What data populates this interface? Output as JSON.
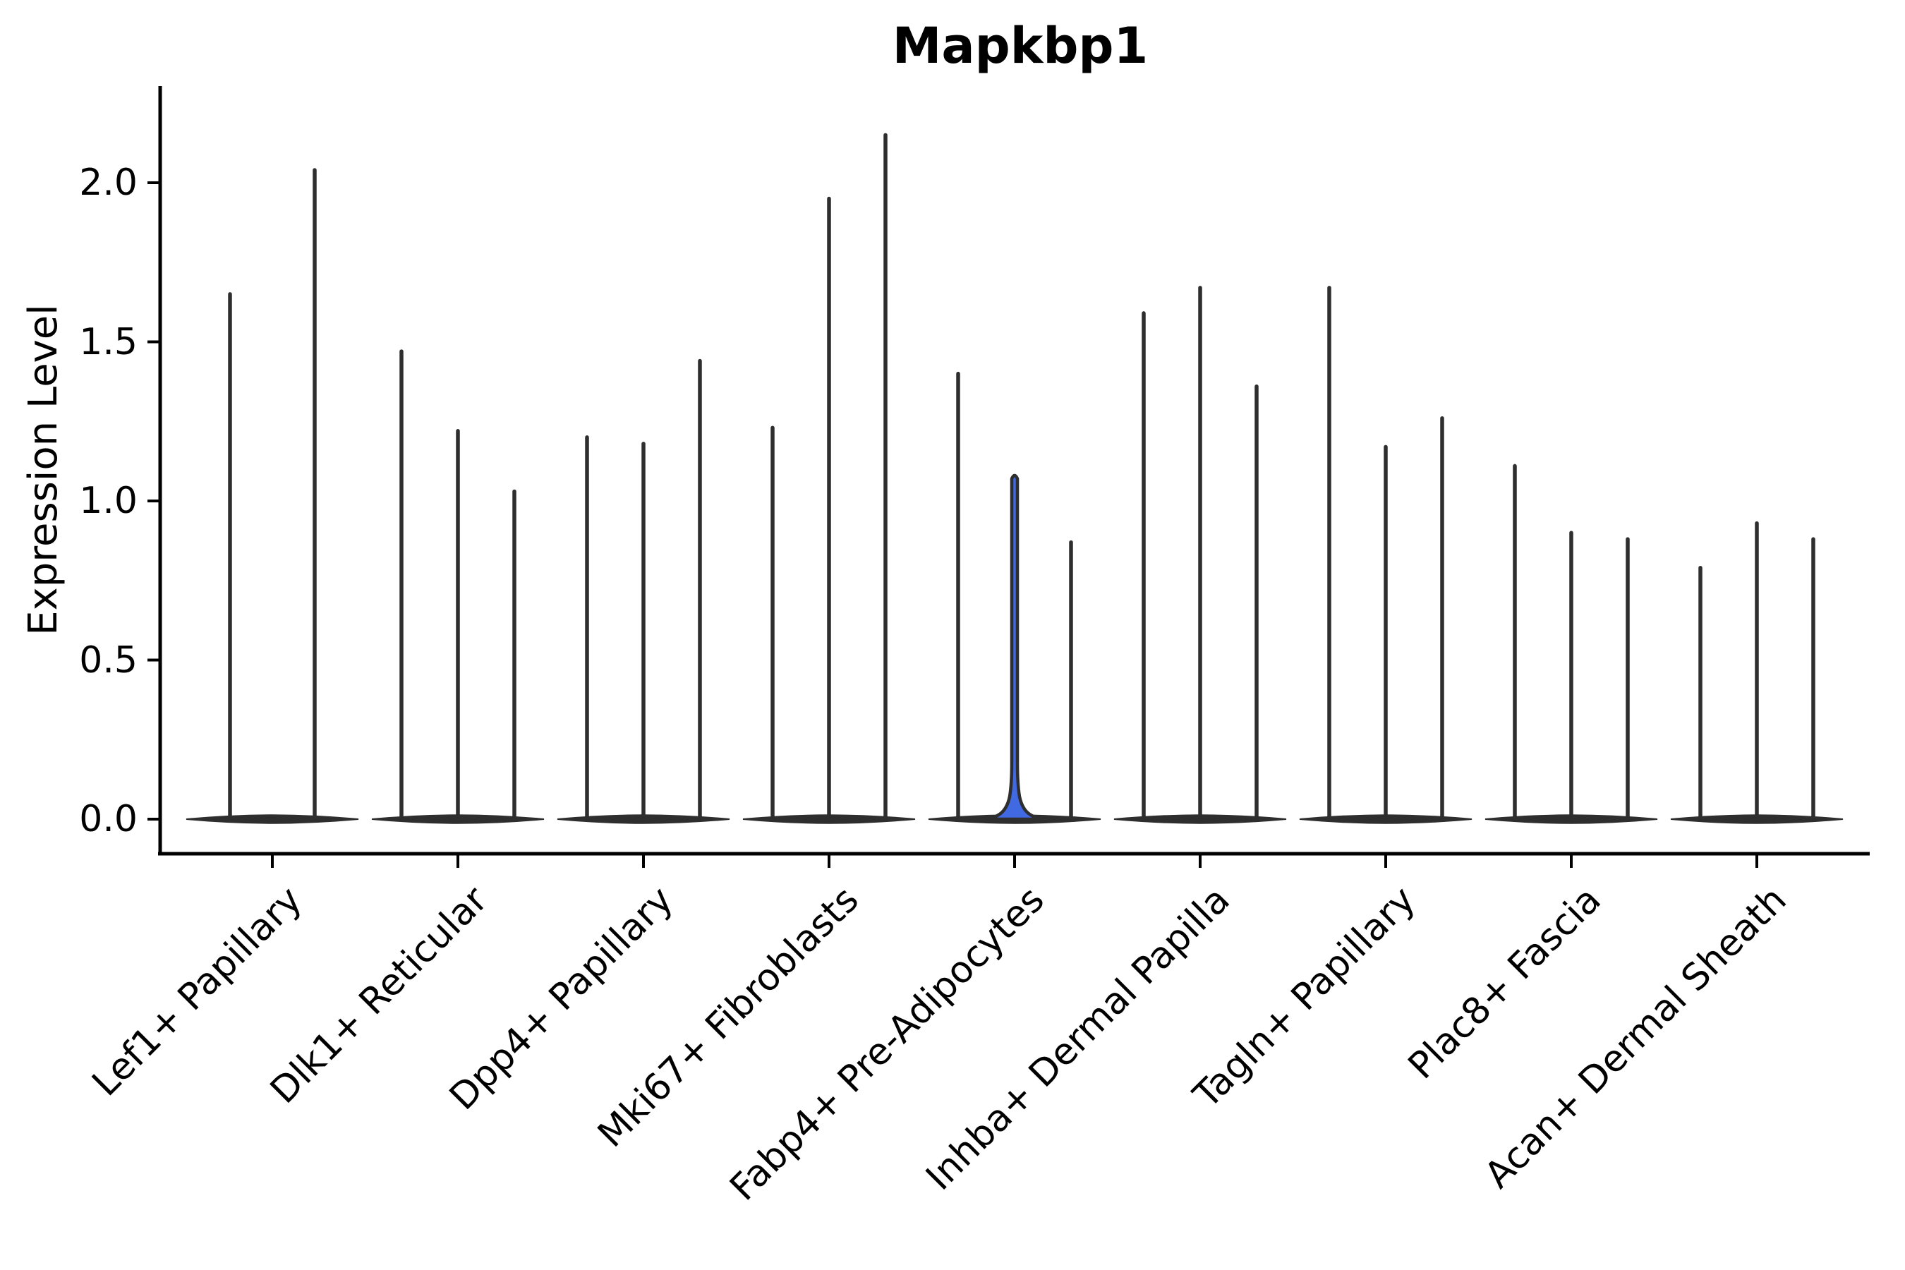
{
  "chart_data": {
    "type": "violin",
    "title": "Mapkbp1",
    "ylabel": "Expression Level",
    "xlabel": "",
    "ylim": [
      0,
      2.31
    ],
    "yticks": [
      0,
      0.5,
      1.0,
      1.5,
      2.0
    ],
    "ytick_labels": [
      "0.0",
      "0.5",
      "1.0",
      "1.5",
      "2.0"
    ],
    "grid": false,
    "legend": "none",
    "categories": [
      "Lef1+ Papillary",
      "Dlk1+ Reticular",
      "Dpp4+ Papillary",
      "Mki67+ Fibroblasts",
      "Fabp4+ Pre-Adipocytes",
      "Inhba+ Dermal Papilla",
      "Tagln+ Papillary",
      "Plac8+ Fascia",
      "Acan+ Dermal Sheath"
    ],
    "groups": [
      {
        "category": "Lef1+ Papillary",
        "violins": [
          {
            "min": 0,
            "max": 1.65,
            "highlight": false
          },
          {
            "min": 0,
            "max": 2.04,
            "highlight": false
          }
        ]
      },
      {
        "category": "Dlk1+ Reticular",
        "violins": [
          {
            "min": 0,
            "max": 1.47,
            "highlight": false
          },
          {
            "min": 0,
            "max": 1.22,
            "highlight": false
          },
          {
            "min": 0,
            "max": 1.03,
            "highlight": false
          }
        ]
      },
      {
        "category": "Dpp4+ Papillary",
        "violins": [
          {
            "min": 0,
            "max": 1.2,
            "highlight": false
          },
          {
            "min": 0,
            "max": 1.18,
            "highlight": false
          },
          {
            "min": 0,
            "max": 1.44,
            "highlight": false
          }
        ]
      },
      {
        "category": "Mki67+ Fibroblasts",
        "violins": [
          {
            "min": 0,
            "max": 1.23,
            "highlight": false
          },
          {
            "min": 0,
            "max": 1.95,
            "highlight": false
          },
          {
            "min": 0,
            "max": 2.15,
            "highlight": false
          }
        ]
      },
      {
        "category": "Fabp4+ Pre-Adipocytes",
        "violins": [
          {
            "min": 0,
            "max": 1.4,
            "highlight": false
          },
          {
            "min": 0,
            "max": 1.09,
            "highlight": true
          },
          {
            "min": 0,
            "max": 0.87,
            "highlight": false
          }
        ]
      },
      {
        "category": "Inhba+ Dermal Papilla",
        "violins": [
          {
            "min": 0,
            "max": 1.59,
            "highlight": false
          },
          {
            "min": 0,
            "max": 1.67,
            "highlight": false
          },
          {
            "min": 0,
            "max": 1.36,
            "highlight": false
          }
        ]
      },
      {
        "category": "Tagln+ Papillary",
        "violins": [
          {
            "min": 0,
            "max": 1.67,
            "highlight": false
          },
          {
            "min": 0,
            "max": 1.17,
            "highlight": false
          },
          {
            "min": 0,
            "max": 1.26,
            "highlight": false
          }
        ]
      },
      {
        "category": "Plac8+ Fascia",
        "violins": [
          {
            "min": 0,
            "max": 1.11,
            "highlight": false
          },
          {
            "min": 0,
            "max": 0.9,
            "highlight": false
          },
          {
            "min": 0,
            "max": 0.88,
            "highlight": false
          }
        ]
      },
      {
        "category": "Acan+ Dermal Sheath",
        "violins": [
          {
            "min": 0,
            "max": 0.79,
            "highlight": false
          },
          {
            "min": 0,
            "max": 0.93,
            "highlight": false
          },
          {
            "min": 0,
            "max": 0.88,
            "highlight": false
          }
        ]
      }
    ],
    "colors": {
      "violin_outline": "#2e2e2e",
      "highlight_fill": "#4169e1",
      "axis": "#000000"
    }
  }
}
